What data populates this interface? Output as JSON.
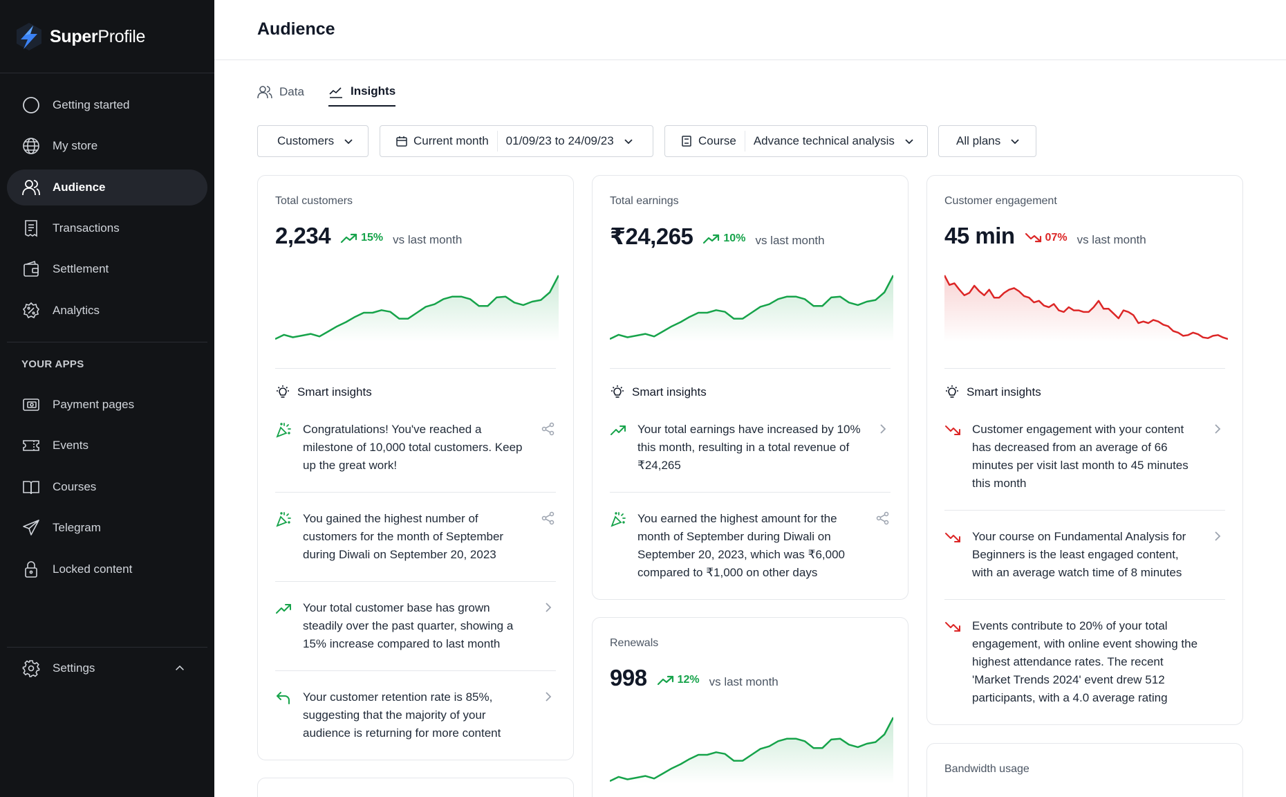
{
  "app": {
    "brand_bold": "Super",
    "brand_light": "Profile"
  },
  "sidebar": {
    "items": [
      {
        "label": "Getting started"
      },
      {
        "label": "My store"
      },
      {
        "label": "Audience"
      },
      {
        "label": "Transactions"
      },
      {
        "label": "Settlement"
      },
      {
        "label": "Analytics"
      }
    ],
    "apps_label": "YOUR APPS",
    "apps": [
      {
        "label": "Payment pages"
      },
      {
        "label": "Events"
      },
      {
        "label": "Courses"
      },
      {
        "label": "Telegram"
      },
      {
        "label": "Locked content"
      }
    ],
    "settings_label": "Settings"
  },
  "header": {
    "title": "Audience"
  },
  "tabs": [
    {
      "label": "Data"
    },
    {
      "label": "Insights"
    }
  ],
  "filters": {
    "audience": "Customers",
    "period": "Current month",
    "date_range": "01/09/23 to 24/09/23",
    "product_type": "Course",
    "product": "Advance technical analysis",
    "plans": "All plans"
  },
  "colors": {
    "positive": "#16a34a",
    "negative": "#dc2626",
    "sidebar_bg": "#121417"
  },
  "cards": {
    "customers": {
      "title": "Total customers",
      "value": "2,234",
      "delta": "15%",
      "vs": "vs last month",
      "smart_title": "Smart insights",
      "trend": [
        5,
        10,
        7,
        9,
        11,
        8,
        14,
        20,
        25,
        31,
        36,
        36,
        39,
        37,
        29,
        29,
        36,
        43,
        46,
        52,
        55,
        55,
        52,
        44,
        44,
        54,
        55,
        48,
        45,
        49,
        51,
        60,
        80
      ],
      "insights": [
        {
          "icon": "celebration-icon",
          "text": "Congratulations! You've reached a milestone of 10,000 total customers. Keep up the great work!"
        },
        {
          "icon": "celebration-icon",
          "text": "You gained the highest number of customers for the month of September during Diwali on September 20, 2023"
        },
        {
          "icon": "trend-up-icon",
          "text": "Your total customer base has grown steadily over the past quarter, showing a 15% increase compared to last month"
        },
        {
          "icon": "return-icon",
          "text": "Your customer retention rate is 85%, suggesting that the majority of your audience is returning for more content"
        }
      ]
    },
    "earnings": {
      "title": "Total earnings",
      "value": "₹24,265",
      "delta": "10%",
      "vs": "vs last month",
      "smart_title": "Smart insights",
      "trend": [
        5,
        10,
        7,
        9,
        11,
        8,
        14,
        20,
        25,
        31,
        36,
        36,
        39,
        37,
        29,
        29,
        36,
        43,
        46,
        52,
        55,
        55,
        52,
        44,
        44,
        54,
        55,
        48,
        45,
        49,
        51,
        60,
        80
      ],
      "insights": [
        {
          "icon": "trend-up-icon",
          "text": "Your total earnings have increased by 10% this month, resulting in a total revenue of ₹24,265"
        },
        {
          "icon": "celebration-icon",
          "text": "You earned the highest amount for the month of September during Diwali on September 20, 2023, which was ₹6,000 compared to ₹1,000 on other days"
        }
      ]
    },
    "renewals": {
      "title": "Renewals",
      "value": "998",
      "delta": "12%",
      "vs": "vs last month",
      "trend": [
        5,
        10,
        7,
        9,
        11,
        8,
        14,
        20,
        25,
        31,
        36,
        36,
        39,
        37,
        29,
        29,
        36,
        43,
        46,
        52,
        55,
        55,
        52,
        44,
        44,
        54,
        55,
        48,
        45,
        49,
        51,
        60,
        80
      ]
    },
    "engagement": {
      "title": "Customer engagement",
      "value": "45 min",
      "delta": "07%",
      "vs": "vs last month",
      "smart_title": "Smart insights",
      "trend": [
        80,
        68,
        70,
        62,
        55,
        58,
        67,
        60,
        55,
        62,
        52,
        52,
        58,
        62,
        64,
        60,
        54,
        52,
        46,
        48,
        42,
        40,
        44,
        36,
        34,
        40,
        36,
        36,
        34,
        34,
        40,
        48,
        38,
        38,
        32,
        26,
        36,
        34,
        30,
        20,
        22,
        20,
        24,
        22,
        18,
        16,
        10,
        8,
        4,
        5,
        8,
        6,
        2,
        1,
        4,
        5,
        2,
        0
      ],
      "insights": [
        {
          "icon": "trend-down-icon",
          "text": "Customer engagement with your content has decreased from an average of 66 minutes per visit last month to 45 minutes this month"
        },
        {
          "icon": "trend-down-icon",
          "text": "Your course on Fundamental Analysis for Beginners is the least engaged content, with an average watch time of 8 minutes"
        },
        {
          "icon": "trend-down-icon",
          "text": "Events contribute to 20% of your total engagement, with online event showing the highest attendance rates. The recent 'Market Trends 2024' event drew 512 participants, with a 4.0 average rating"
        }
      ]
    },
    "bandwidth": {
      "title": "Bandwidth usage"
    }
  }
}
